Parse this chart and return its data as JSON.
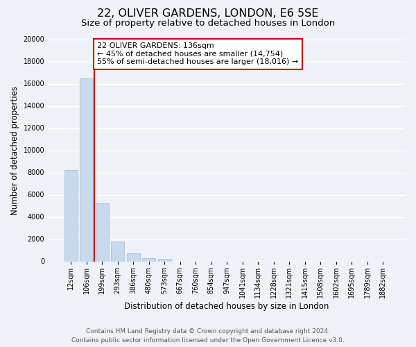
{
  "title": "22, OLIVER GARDENS, LONDON, E6 5SE",
  "subtitle": "Size of property relative to detached houses in London",
  "xlabel": "Distribution of detached houses by size in London",
  "ylabel": "Number of detached properties",
  "bar_color": "#c8d9ed",
  "bar_edge_color": "#a0b8d0",
  "vline_color": "#cc0000",
  "annotation_box_text_line1": "22 OLIVER GARDENS: 136sqm",
  "annotation_box_text_line2": "← 45% of detached houses are smaller (14,754)",
  "annotation_box_text_line3": "55% of semi-detached houses are larger (18,016) →",
  "annotation_box_color": "white",
  "annotation_box_edge_color": "#cc0000",
  "categories": [
    "12sqm",
    "106sqm",
    "199sqm",
    "293sqm",
    "386sqm",
    "480sqm",
    "573sqm",
    "667sqm",
    "760sqm",
    "854sqm",
    "947sqm",
    "1041sqm",
    "1134sqm",
    "1228sqm",
    "1321sqm",
    "1415sqm",
    "1508sqm",
    "1602sqm",
    "1695sqm",
    "1789sqm",
    "1882sqm"
  ],
  "values": [
    8200,
    16500,
    5250,
    1800,
    730,
    280,
    200,
    0,
    0,
    0,
    0,
    0,
    0,
    0,
    0,
    0,
    0,
    0,
    0,
    0,
    0
  ],
  "ylim": [
    0,
    20000
  ],
  "yticks": [
    0,
    2000,
    4000,
    6000,
    8000,
    10000,
    12000,
    14000,
    16000,
    18000,
    20000
  ],
  "footer_line1": "Contains HM Land Registry data © Crown copyright and database right 2024.",
  "footer_line2": "Contains public sector information licensed under the Open Government Licence v3.0.",
  "background_color": "#eef2f7",
  "plot_bg_color": "#eef2f7",
  "grid_color": "white",
  "title_fontsize": 11.5,
  "subtitle_fontsize": 9.5,
  "axis_label_fontsize": 8.5,
  "tick_fontsize": 7,
  "footer_fontsize": 6.5,
  "annotation_fontsize": 8
}
